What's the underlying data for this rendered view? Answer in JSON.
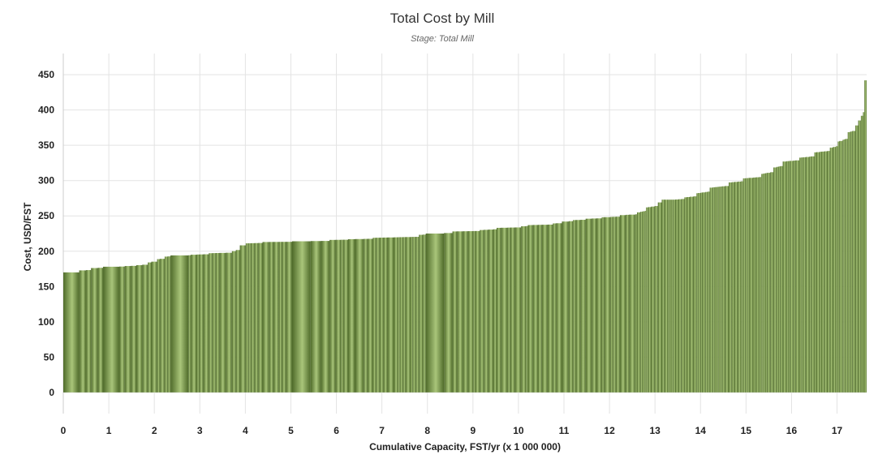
{
  "chart_data": {
    "type": "bar",
    "title": "Total Cost by Mill",
    "subtitle": "Stage: Total Mill",
    "xlabel": "Cumulative Capacity, FST/yr (x 1 000 000)",
    "ylabel": "Cost, USD/FST",
    "xlim": [
      0,
      17.65
    ],
    "ylim": [
      -30,
      480
    ],
    "x_ticks": [
      "0",
      "1",
      "2",
      "3",
      "4",
      "5",
      "6",
      "7",
      "8",
      "9",
      "10",
      "11",
      "12",
      "13",
      "14",
      "15",
      "16",
      "17"
    ],
    "y_ticks": [
      "0",
      "50",
      "100",
      "150",
      "200",
      "250",
      "300",
      "350",
      "400",
      "450"
    ],
    "grid": true,
    "colors": {
      "bar_dark": "#4f6b2a",
      "bar_mid": "#7e9c4c",
      "bar_light": "#a9c57a"
    },
    "series": [
      {
        "step_points": [
          [
            0.0,
            170
          ],
          [
            0.05,
            172
          ],
          [
            0.55,
            176
          ],
          [
            0.85,
            178
          ],
          [
            1.35,
            179
          ],
          [
            1.55,
            180
          ],
          [
            1.85,
            184
          ],
          [
            1.95,
            188
          ],
          [
            2.15,
            192
          ],
          [
            2.3,
            194
          ],
          [
            2.8,
            195
          ],
          [
            3.1,
            197
          ],
          [
            3.7,
            200
          ],
          [
            3.85,
            208
          ],
          [
            3.95,
            211
          ],
          [
            4.3,
            213
          ],
          [
            4.95,
            214
          ],
          [
            5.85,
            216
          ],
          [
            6.25,
            217
          ],
          [
            6.8,
            219
          ],
          [
            7.75,
            223
          ],
          [
            7.95,
            225
          ],
          [
            8.55,
            228
          ],
          [
            9.15,
            230
          ],
          [
            9.45,
            233
          ],
          [
            9.95,
            235
          ],
          [
            10.2,
            237
          ],
          [
            10.65,
            239
          ],
          [
            10.95,
            242
          ],
          [
            11.15,
            244
          ],
          [
            11.45,
            246
          ],
          [
            11.8,
            248
          ],
          [
            12.2,
            251
          ],
          [
            12.6,
            255
          ],
          [
            12.8,
            262
          ],
          [
            13.0,
            268
          ],
          [
            13.1,
            273
          ],
          [
            13.4,
            273
          ],
          [
            13.6,
            276
          ],
          [
            13.9,
            282
          ],
          [
            14.2,
            290
          ],
          [
            14.55,
            297
          ],
          [
            14.9,
            303
          ],
          [
            15.3,
            309
          ],
          [
            15.55,
            318
          ],
          [
            15.8,
            327
          ],
          [
            16.1,
            332
          ],
          [
            16.5,
            340
          ],
          [
            16.8,
            346
          ],
          [
            17.0,
            355
          ],
          [
            17.2,
            368
          ],
          [
            17.4,
            378
          ],
          [
            17.6,
            442
          ]
        ]
      }
    ]
  }
}
